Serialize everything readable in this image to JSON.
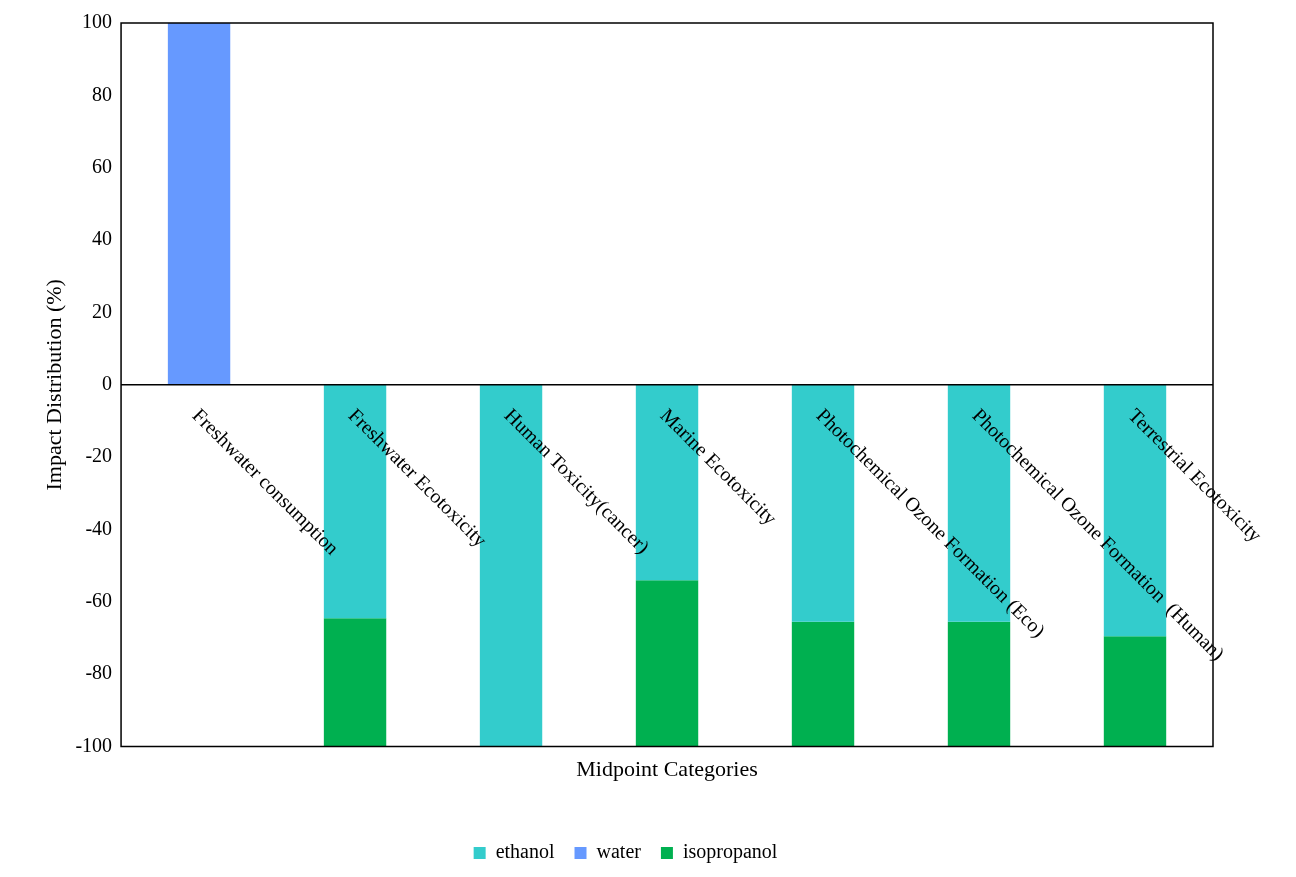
{
  "chart_data": {
    "type": "bar",
    "stacked": true,
    "xlabel": "Midpoint Categories",
    "ylabel": "Impact Distribution (%)",
    "categories": [
      "Freshwater consumption",
      "Freshwater Ecotoxicity",
      "Human Toxicity(cancer)",
      "Marine Ecotoxicity",
      "Photochemical Ozone Formation (Eco)",
      "Photochemical Ozone Formation  (Human)",
      "Terrestrial Ecotoxicity"
    ],
    "series": [
      {
        "name": "ethanol",
        "color": "#33cccc",
        "values": [
          null,
          -64.5,
          -100,
          -54,
          -65.5,
          -65.5,
          -69.5
        ]
      },
      {
        "name": "water",
        "color": "#6699ff",
        "values": [
          100,
          null,
          null,
          null,
          null,
          null,
          null
        ]
      },
      {
        "name": "isopropanol",
        "color": "#00b050",
        "values": [
          null,
          -35.5,
          null,
          -46,
          -34.5,
          -34.5,
          -30.5
        ]
      }
    ],
    "ylim": [
      -100,
      100
    ],
    "yticks": [
      -100,
      -80,
      -60,
      -40,
      -20,
      0,
      20,
      40,
      60,
      80,
      100
    ],
    "grid": false,
    "legend": "bottom"
  }
}
